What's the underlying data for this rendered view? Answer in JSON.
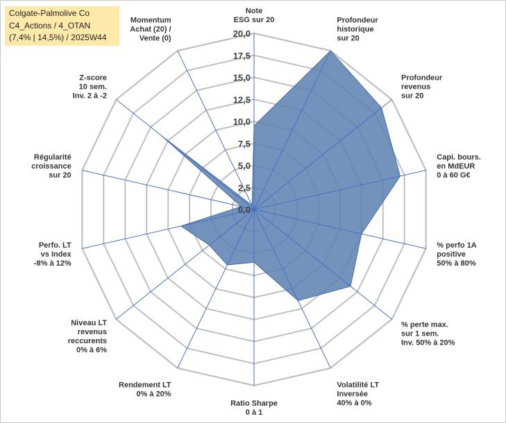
{
  "title_box": {
    "lines": [
      "Colgate-Palmolive Co",
      "C4_Actions / 4_OTAN",
      "(7,4% | 14,5%) / 2025W44"
    ],
    "background": "#fde9a9"
  },
  "chart_data": {
    "type": "radar",
    "axes": [
      {
        "label": [
          "Note",
          "ESG sur 20"
        ]
      },
      {
        "label": [
          "Profondeur",
          "historique",
          "sur 20"
        ]
      },
      {
        "label": [
          "Profondeur",
          "revenus",
          "sur 20"
        ]
      },
      {
        "label": [
          "Capi. bours.",
          "en MdEUR",
          "0 à 60 G€"
        ]
      },
      {
        "label": [
          "% perfo 1A",
          "positive",
          "50% à 80%"
        ]
      },
      {
        "label": [
          "% perte max.",
          "sur 1 sem.",
          "Inv. 50% à 20%"
        ]
      },
      {
        "label": [
          "Volatilité LT",
          "Inversée",
          "40% à 0%"
        ]
      },
      {
        "label": [
          "Ratio Sharpe",
          "0 à 1"
        ]
      },
      {
        "label": [
          "Rendement LT",
          "0% à 20%"
        ]
      },
      {
        "label": [
          "Niveau LT",
          "revenus",
          "reccurents",
          "0% à 6%"
        ]
      },
      {
        "label": [
          "Perfo. LT",
          "vs Index",
          "-8% à 12%"
        ]
      },
      {
        "label": [
          "Régularité",
          "croissance",
          "sur 20"
        ]
      },
      {
        "label": [
          "Z-score",
          "10 sem.",
          "Inv. 2 à -2"
        ]
      },
      {
        "label": [
          "Momentum",
          "Achat (20) /",
          "Vente (0)"
        ]
      }
    ],
    "values": [
      9.5,
      20.0,
      18.5,
      17.0,
      12.5,
      14.0,
      11.5,
      6.0,
      7.0,
      6.5,
      8.5,
      1.5,
      13.5,
      0.5
    ],
    "rmin": 0,
    "rmax": 20,
    "ticks": [
      "0,0",
      "2,5",
      "5,0",
      "7,5",
      "10,0",
      "12,5",
      "15,0",
      "17,5",
      "20,0"
    ],
    "fill_color": "#5b7fb0",
    "grid_color": "#bfbfbf",
    "spoke_color": "#4472c4"
  }
}
